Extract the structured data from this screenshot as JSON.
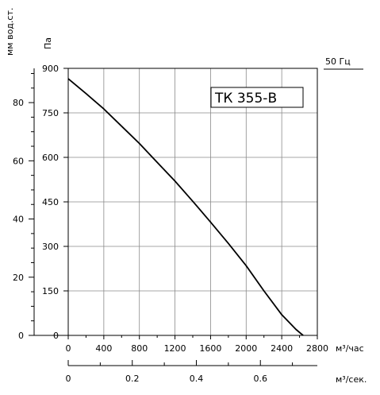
{
  "chart_data": {
    "type": "line",
    "model_label": "ТК 355-В",
    "frequency_label": "50 Гц",
    "x_primary": {
      "label": "м³/час",
      "ticks": [
        "0",
        "400",
        "800",
        "1200",
        "1600",
        "2000",
        "2400",
        "2800"
      ],
      "range": [
        0,
        2800
      ]
    },
    "x_secondary": {
      "label": "м³/сек.",
      "ticks": [
        "0",
        "0.2",
        "0.4",
        "0.6"
      ],
      "range": [
        0,
        0.7778
      ]
    },
    "y_primary": {
      "label": "Па",
      "ticks": [
        "0",
        "150",
        "300",
        "450",
        "600",
        "750",
        "900"
      ],
      "range": [
        0,
        900
      ]
    },
    "y_secondary": {
      "label": "мм вод.ст.",
      "ticks": [
        "0",
        "20",
        "40",
        "60",
        "80"
      ],
      "range": [
        0,
        91.8
      ]
    },
    "grid": true,
    "series": [
      {
        "x": [
          0,
          200,
          400,
          600,
          800,
          1000,
          1200,
          1400,
          1600,
          1800,
          2000,
          2200,
          2400,
          2560,
          2640
        ],
        "y": [
          865,
          815,
          763,
          705,
          647,
          583,
          520,
          452,
          382,
          310,
          235,
          150,
          70,
          20,
          0
        ]
      }
    ]
  }
}
